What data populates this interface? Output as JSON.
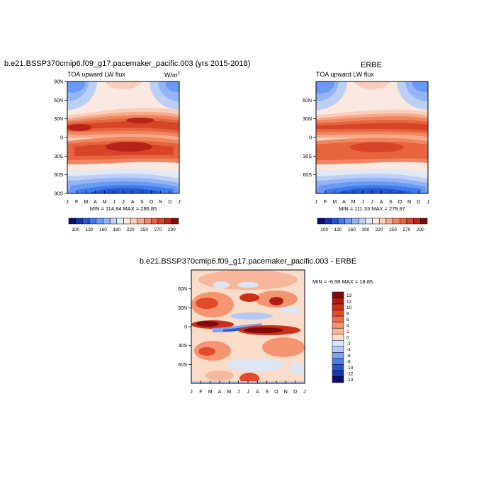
{
  "panels": {
    "model": {
      "title": "b.e21.BSSP370cmip6.f09_g17.pacemaker_pacific.003 (yrs 2015-2018)",
      "left_label": "TOA upward LW flux",
      "units_base": "W/m",
      "units_exp": "2",
      "min_max": "MIN = 114.84 MAX = 286.85",
      "lat_ticks": [
        "90N",
        "60N",
        "30N",
        "0",
        "30S",
        "60S",
        "90S"
      ]
    },
    "obs": {
      "title": "ERBE",
      "left_label": "TOA upward LW flux",
      "min_max": "MIN = 111.33 MAX = 279.97",
      "lat_ticks": [
        "60N",
        "30N",
        "0",
        "30S",
        "60S"
      ]
    },
    "diff": {
      "title": "b.e21.BSSP370cmip6.f09_g17.pacemaker_pacific.003 - ERBE",
      "min_max": "MIN =  -6.98 MAX =  18.85",
      "lat_ticks": [
        "60N",
        "30N",
        "0",
        "30S",
        "60S"
      ]
    }
  },
  "chart_data": [
    {
      "type": "heatmap",
      "title": "b.e21.BSSP370cmip6.f09_g17.pacemaker_pacific.003 (yrs 2015-2018)",
      "variable": "TOA upward LW flux",
      "units": "W/m2",
      "x_categories": [
        "J",
        "F",
        "M",
        "A",
        "M",
        "J",
        "J",
        "A",
        "S",
        "O",
        "N",
        "D",
        "J"
      ],
      "ylim": [
        -90,
        90
      ],
      "colorbar_labels": [
        "100",
        "130",
        "160",
        "190",
        "220",
        "250",
        "270",
        "290"
      ],
      "min": 114.84,
      "max": 286.85
    },
    {
      "type": "heatmap",
      "title": "ERBE",
      "variable": "TOA upward LW flux",
      "units": "W/m2",
      "x_categories": [
        "J",
        "F",
        "M",
        "A",
        "M",
        "J",
        "J",
        "A",
        "S",
        "O",
        "N",
        "D",
        "J"
      ],
      "ylim": [
        -90,
        90
      ],
      "colorbar_labels": [
        "100",
        "130",
        "160",
        "190",
        "220",
        "250",
        "270",
        "290"
      ],
      "min": 111.33,
      "max": 279.97
    },
    {
      "type": "heatmap",
      "title": "b.e21.BSSP370cmip6.f09_g17.pacemaker_pacific.003 - ERBE",
      "x_categories": [
        "J",
        "F",
        "M",
        "A",
        "M",
        "J",
        "J",
        "A",
        "S",
        "O",
        "N",
        "D",
        "J"
      ],
      "ylim": [
        -90,
        90
      ],
      "colorbar_labels": [
        "13",
        "12",
        "10",
        "8",
        "6",
        "4",
        "2",
        "0",
        "-2",
        "-4",
        "-6",
        "-8",
        "-10",
        "-12",
        "-13"
      ],
      "min": -6.98,
      "max": 18.85
    }
  ],
  "colors": {
    "abs_scale": [
      "#0b0b72",
      "#1631a8",
      "#2556d4",
      "#3e7bef",
      "#6899f4",
      "#94b5f5",
      "#bcd0f6",
      "#e1e8f6",
      "#fbe8e0",
      "#f9cdb8",
      "#f5aa8b",
      "#f08560",
      "#e8643f",
      "#d9432a",
      "#b92218",
      "#7e0a0a"
    ],
    "diff_scale": [
      "#7e0a0a",
      "#b01b12",
      "#cc3118",
      "#e14b2a",
      "#ef7048",
      "#f5956f",
      "#f8b79a",
      "#fbdcc9",
      "#dce6f7",
      "#b3c9f3",
      "#7ea4f0",
      "#4d7ee9",
      "#2955d4",
      "#1734aa",
      "#0b0b72"
    ]
  }
}
